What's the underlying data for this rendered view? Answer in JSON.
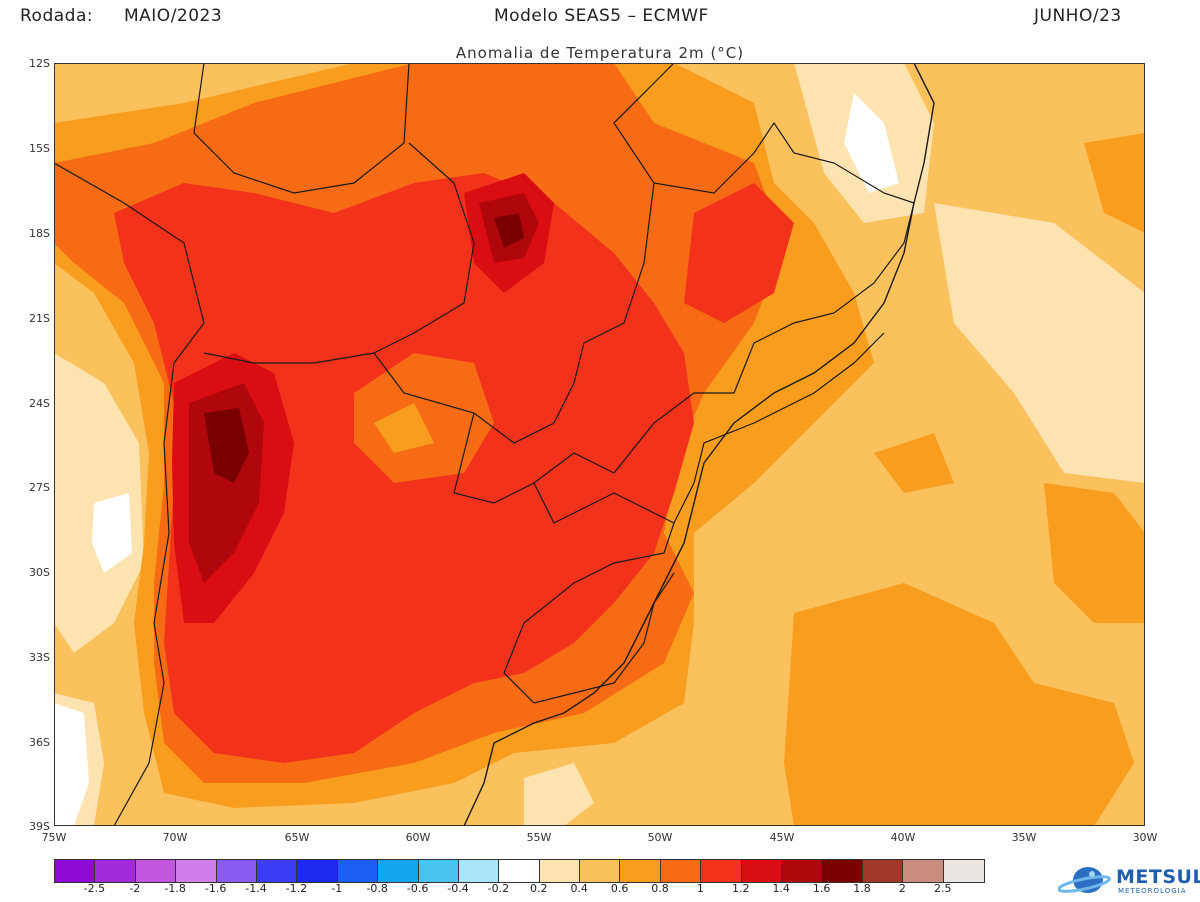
{
  "header": {
    "rodada_label": "Rodada:",
    "rodada_value": "MAIO/2023",
    "model": "Modelo SEAS5 – ECMWF",
    "target": "JUNHO/23"
  },
  "subtitle": "Anomalia de Temperatura 2m (°C)",
  "axes": {
    "lat_labels": [
      "12S",
      "15S",
      "18S",
      "21S",
      "24S",
      "27S",
      "30S",
      "33S",
      "36S",
      "39S"
    ],
    "lon_labels": [
      "75W",
      "70W",
      "65W",
      "60W",
      "55W",
      "50W",
      "45W",
      "40W",
      "35W",
      "30W"
    ]
  },
  "colorbar": {
    "colors": [
      "#8e0bd6",
      "#a32ad9",
      "#c157df",
      "#d07ee9",
      "#8b5af0",
      "#3c3cf2",
      "#1f2af0",
      "#1b5ff2",
      "#16a5ef",
      "#48c4f0",
      "#a9e5f8",
      "#ffffff",
      "#fde3b0",
      "#fbc15c",
      "#f99d1e",
      "#f66b14",
      "#f2321b",
      "#d90d12",
      "#b0070c",
      "#7a0000",
      "#a0372a",
      "#c98c7f",
      "#ece6e2"
    ],
    "labels": [
      "-2.5",
      "-2",
      "-1.8",
      "-1.6",
      "-1.4",
      "-1.2",
      "-1",
      "-0.8",
      "-0.6",
      "-0.4",
      "-0.2",
      "0.2",
      "0.4",
      "0.6",
      "0.8",
      "1",
      "1.2",
      "1.4",
      "1.6",
      "1.8",
      "2",
      "2.5"
    ]
  },
  "logo": {
    "name": "METSUL",
    "sub": "METEOROLOGIA"
  }
}
